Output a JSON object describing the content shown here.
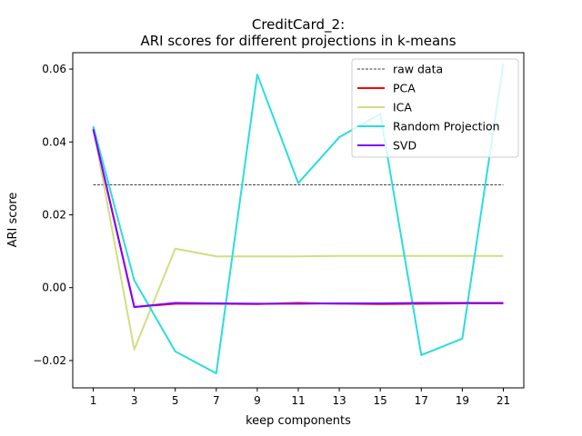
{
  "chart_data": {
    "type": "line",
    "title_line1": "CreditCard_2:",
    "title_line2": "ARI scores for different projections in k-means",
    "xlabel": "keep components",
    "ylabel": "ARI score",
    "x": [
      1,
      3,
      5,
      7,
      9,
      11,
      13,
      15,
      17,
      19,
      21
    ],
    "xticks": [
      "1",
      "3",
      "5",
      "7",
      "9",
      "11",
      "13",
      "15",
      "17",
      "19",
      "21"
    ],
    "yticks": [
      -0.02,
      0.0,
      0.02,
      0.04,
      0.06
    ],
    "ytick_labels": [
      "−0.02",
      "0.00",
      "0.02",
      "0.04",
      "0.06"
    ],
    "xlim": [
      0,
      22
    ],
    "ylim": [
      -0.0275,
      0.0645
    ],
    "grid": false,
    "legend_position": "upper-right",
    "raw_data": {
      "name": "raw data",
      "value": 0.0282,
      "color": "#000000"
    },
    "series": [
      {
        "name": "PCA",
        "color": "#ff0000",
        "values": [
          0.0435,
          -0.0053,
          -0.0044,
          -0.0044,
          -0.0045,
          -0.0042,
          -0.0044,
          -0.0045,
          -0.0044,
          -0.0043,
          -0.0043
        ]
      },
      {
        "name": "ICA",
        "color": "#d4dd80",
        "values": [
          0.044,
          -0.017,
          0.0107,
          0.0086,
          0.0086,
          0.0086,
          0.0087,
          0.0087,
          0.0087,
          0.0087,
          0.0087
        ]
      },
      {
        "name": "Random Projection",
        "color": "#2adddd",
        "values": [
          0.0443,
          0.002,
          -0.0175,
          -0.0235,
          0.0585,
          0.0287,
          0.0413,
          0.0477,
          -0.0185,
          -0.014,
          0.0615
        ]
      },
      {
        "name": "SVD",
        "color": "#8000ff",
        "values": [
          0.0435,
          -0.0053,
          -0.0042,
          -0.0043,
          -0.0044,
          -0.0044,
          -0.0043,
          -0.0043,
          -0.0042,
          -0.0042,
          -0.0042
        ]
      }
    ]
  }
}
